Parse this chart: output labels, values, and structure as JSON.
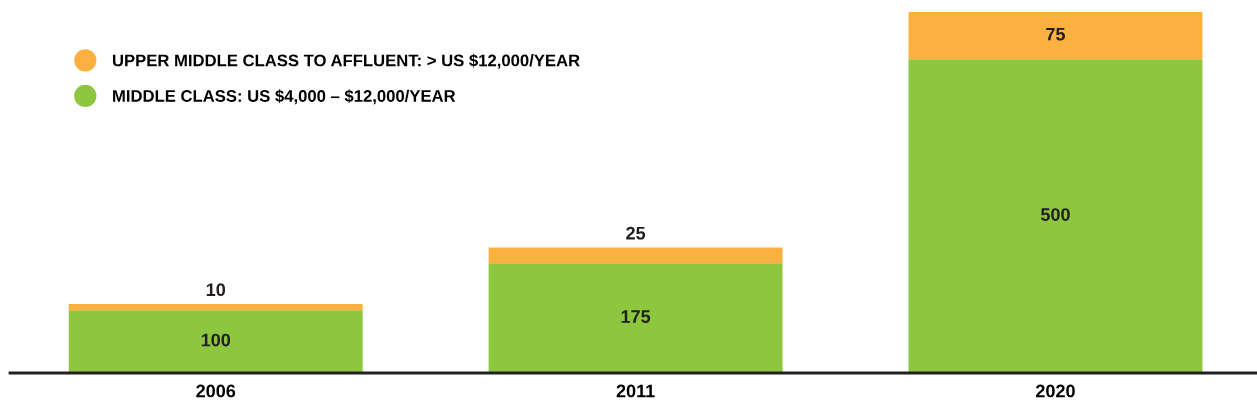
{
  "chart_data": {
    "type": "bar",
    "stacked": true,
    "data_labels": true,
    "legend": "top left",
    "marker": "circle",
    "grid": false,
    "relative": false,
    "categories": [
      "2006",
      "2011",
      "2020"
    ],
    "series": [
      {
        "name": "MIDDLE CLASS: US $4,000 – $12,000/YEAR",
        "color": "#8dc63f",
        "values": [
          100,
          175,
          500
        ]
      },
      {
        "name": "UPPER MIDDLE CLASS TO AFFLUENT: > US $12,000/YEAR",
        "color": "#fbb040",
        "values": [
          10,
          25,
          75
        ]
      }
    ]
  }
}
